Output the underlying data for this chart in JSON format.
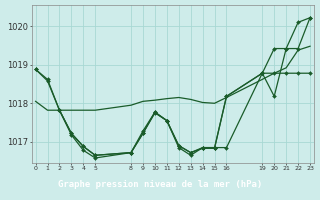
{
  "background_color": "#ceecea",
  "grid_color": "#a8d8d4",
  "line_color": "#1a5c2a",
  "footer_bg": "#2d7a3a",
  "footer_text_color": "#ffffff",
  "title": "Graphe pression niveau de la mer (hPa)",
  "xlim": [
    -0.3,
    23.3
  ],
  "ylim": [
    1016.45,
    1020.55
  ],
  "yticks": [
    1017,
    1018,
    1019,
    1020
  ],
  "xtick_pos": [
    0,
    1,
    2,
    3,
    4,
    5,
    8,
    9,
    10,
    11,
    12,
    13,
    14,
    15,
    16,
    19,
    20,
    21,
    22,
    23
  ],
  "xtick_labels": [
    "0",
    "1",
    "2",
    "3",
    "4",
    "5",
    "8",
    "9",
    "10",
    "11",
    "12",
    "13",
    "14",
    "15",
    "16",
    "19",
    "20",
    "21",
    "22",
    "23"
  ],
  "series": [
    {
      "x": [
        0,
        1,
        2,
        3,
        4,
        5,
        8,
        9,
        10,
        11,
        12,
        13,
        14,
        15,
        16,
        19,
        20,
        21,
        22,
        23
      ],
      "y": [
        1018.88,
        1018.62,
        1017.82,
        1017.22,
        1016.88,
        1016.65,
        1016.72,
        1017.22,
        1017.77,
        1017.55,
        1016.9,
        1016.72,
        1016.85,
        1016.85,
        1016.85,
        1018.78,
        1018.78,
        1018.78,
        1018.78,
        1018.78
      ],
      "marker": true,
      "lw": 0.9
    },
    {
      "x": [
        0,
        1,
        2,
        3,
        4,
        5,
        8,
        9,
        10,
        11,
        12,
        13,
        14,
        15,
        16,
        19,
        20,
        21,
        22,
        23
      ],
      "y": [
        1018.88,
        1018.58,
        1017.82,
        1017.18,
        1016.78,
        1016.58,
        1016.72,
        1017.28,
        1017.77,
        1017.55,
        1016.9,
        1016.72,
        1016.83,
        1016.83,
        1018.18,
        1018.78,
        1019.42,
        1019.42,
        1020.1,
        1020.22
      ],
      "marker": true,
      "lw": 0.9
    },
    {
      "x": [
        0,
        1,
        2,
        3,
        4,
        5,
        8,
        9,
        10,
        11,
        12,
        13,
        14,
        15,
        16,
        19,
        20,
        21,
        22,
        23
      ],
      "y": [
        1018.05,
        1017.82,
        1017.82,
        1017.82,
        1017.82,
        1017.82,
        1017.95,
        1018.05,
        1018.08,
        1018.12,
        1018.15,
        1018.1,
        1018.02,
        1018.0,
        1018.15,
        1018.62,
        1018.78,
        1018.92,
        1019.38,
        1019.48
      ],
      "marker": false,
      "lw": 0.9
    },
    {
      "x": [
        2,
        3,
        4,
        5,
        8,
        9,
        10,
        11,
        12,
        13,
        14,
        15,
        16,
        19,
        20,
        21,
        22,
        23
      ],
      "y": [
        1017.82,
        1017.22,
        1016.88,
        1016.65,
        1016.72,
        1017.22,
        1017.75,
        1017.55,
        1016.85,
        1016.65,
        1016.85,
        1016.85,
        1018.18,
        1018.78,
        1018.18,
        1019.42,
        1019.42,
        1020.22
      ],
      "marker": true,
      "lw": 0.9
    }
  ]
}
